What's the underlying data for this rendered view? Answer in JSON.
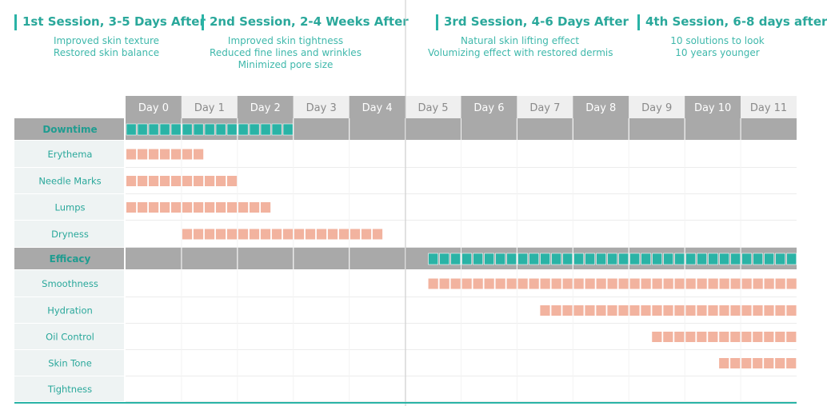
{
  "sessions": [
    {
      "title": "1st Session, 3-5 Days After",
      "lines": [
        "Improved skin texture",
        "Restored skin balance"
      ]
    },
    {
      "title": "2nd Session, 2-4 Weeks After",
      "lines": [
        "Improved skin tightness",
        "Reduced fine lines and wrinkles",
        "Minimized pore size"
      ]
    },
    {
      "title": "3rd Session, 4-6 Days After",
      "lines": [
        "Natural skin lifting effect",
        "Volumizing effect with restored dermis"
      ]
    },
    {
      "title": "4th Session, 6-8 days after",
      "lines": [
        "10 solutions to look",
        "10 years younger"
      ]
    }
  ],
  "colors": {
    "accent": "#2ab3a6",
    "bar_teal": "#2ab3a6",
    "bar_salmon": "#f2b39f",
    "header_dark": "#a9a9a9",
    "header_light": "#efefef",
    "label_bg": "#eef3f3",
    "category_label": "#1f9c90",
    "row_label": "#2aa89b"
  },
  "chart_data": {
    "type": "gantt",
    "x_categories": [
      "Day 0",
      "Day 1",
      "Day 2",
      "Day 3",
      "Day 4",
      "Day 5",
      "Day 6",
      "Day 7",
      "Day 8",
      "Day 9",
      "Day 10",
      "Day 11"
    ],
    "rows": [
      {
        "label": "Downtime",
        "kind": "category",
        "start": 0,
        "end": 3
      },
      {
        "label": "Erythema",
        "kind": "item",
        "start": 0,
        "end": 1.4
      },
      {
        "label": "Needle Marks",
        "kind": "item",
        "start": 0,
        "end": 2
      },
      {
        "label": "Lumps",
        "kind": "item",
        "start": 0,
        "end": 2.6
      },
      {
        "label": "Dryness",
        "kind": "item",
        "start": 1,
        "end": 4.6
      },
      {
        "label": "Efficacy",
        "kind": "category",
        "start": 5.4,
        "end": 12
      },
      {
        "label": "Smoothness",
        "kind": "item",
        "start": 5.4,
        "end": 12
      },
      {
        "label": "Hydration",
        "kind": "item",
        "start": 7.4,
        "end": 12
      },
      {
        "label": "Oil Control",
        "kind": "item",
        "start": 9.4,
        "end": 12
      },
      {
        "label": "Skin Tone",
        "kind": "item",
        "start": 10.6,
        "end": 12
      },
      {
        "label": "Tightness",
        "kind": "item",
        "start": null,
        "end": null
      }
    ]
  }
}
